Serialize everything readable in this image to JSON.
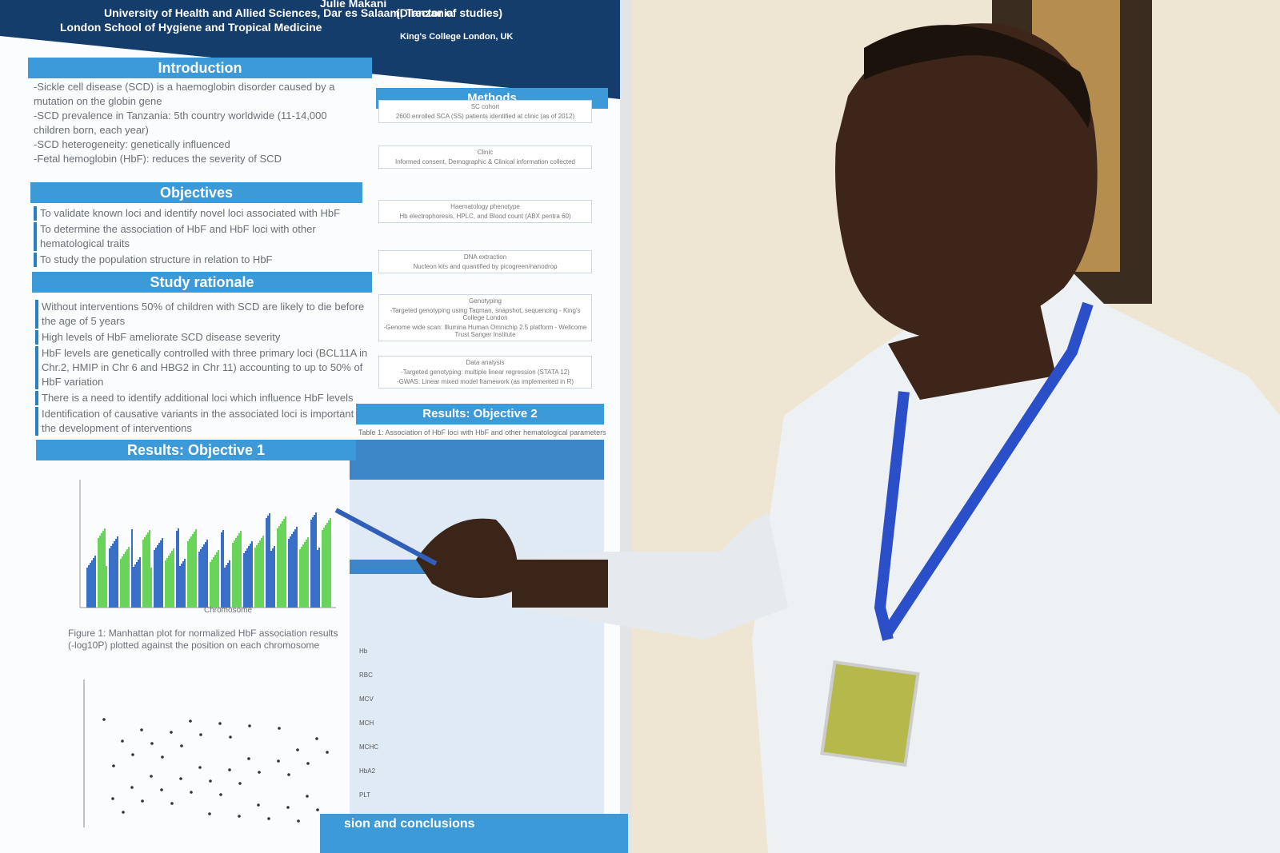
{
  "header": {
    "lines": [
      "University of Health and Allied Sciences, Dar es Salaam, Tanzania",
      "King's College London, UK",
      "London School of Hygiene and Tropical Medicine"
    ],
    "author": "Julie Makani",
    "author_role": "(Director of studies)"
  },
  "introduction": {
    "title": "Introduction",
    "lines": [
      "-Sickle cell disease (SCD) is a haemoglobin disorder  caused by a mutation on the globin gene",
      "-SCD prevalence in Tanzania: 5th country worldwide (11-14,000 children born, each year)",
      "-SCD heterogeneity: genetically influenced",
      "-Fetal hemoglobin (HbF): reduces the severity of SCD"
    ]
  },
  "objectives": {
    "title": "Objectives",
    "items": [
      "To validate known loci and identify novel loci associated with HbF",
      "To determine the association of HbF and HbF loci with other hematological traits",
      "To study the population structure in relation to HbF"
    ]
  },
  "study_rationale": {
    "title": "Study rationale",
    "items": [
      "Without interventions 50% of children with SCD are likely to die before the age of 5 years",
      "High levels of HbF ameliorate SCD disease severity",
      "HbF levels are genetically controlled with three primary loci (BCL11A in Chr.2, HMIP in Chr 6 and HBG2 in Chr 11) accounting to up to 50% of HbF variation",
      "There is a need to identify additional loci which influence HbF levels",
      "Identification of causative variants in the associated loci is important for the development of interventions"
    ]
  },
  "methods": {
    "title": "Methods",
    "steps": [
      {
        "title": "SC cohort",
        "text": [
          "2600 enrolled SCA (SS) patients identified at clinic (as of 2012)"
        ]
      },
      {
        "title": "Clinic",
        "text": [
          "Informed consent, Demographic & Clinical information collected"
        ]
      },
      {
        "title": "Haematology phenotype",
        "text": [
          "Hb electrophoresis, HPLC, and Blood count (ABX pentra 60)"
        ]
      },
      {
        "title": "DNA extraction",
        "text": [
          "Nucleon kits and quantified by picogreen/nanodrop"
        ]
      },
      {
        "title": "Genotyping",
        "text": [
          "-Targeted genotyping using Taqman, snapshot, sequencing - King's College London",
          "-Genome wide scan: Illumina Human Omnichip 2.5 platform - Wellcome Trust Sanger Institute"
        ]
      },
      {
        "title": "Data analysis",
        "text": [
          "-Targeted genotyping: multiple linear regression (STATA 12)",
          "-GWAS: Linear mixed model framework (as implemented in R)"
        ]
      }
    ]
  },
  "results_1": {
    "title": "Results: Objective 1",
    "x_label": "Chromosome",
    "caption": "Figure 1: Manhattan plot for normalized HbF association results (-log10P) plotted against the position on each chromosome"
  },
  "results_2": {
    "title": "Results: Objective 2",
    "caption": "Table 1: Association of HbF loci with HbF and other hematological parameters",
    "row_labels": [
      "Hb",
      "RBC",
      "MCV",
      "MCH",
      "MCHC",
      "HbA2",
      "PLT"
    ]
  },
  "conclusions": {
    "title": "sion and conclusions"
  }
}
